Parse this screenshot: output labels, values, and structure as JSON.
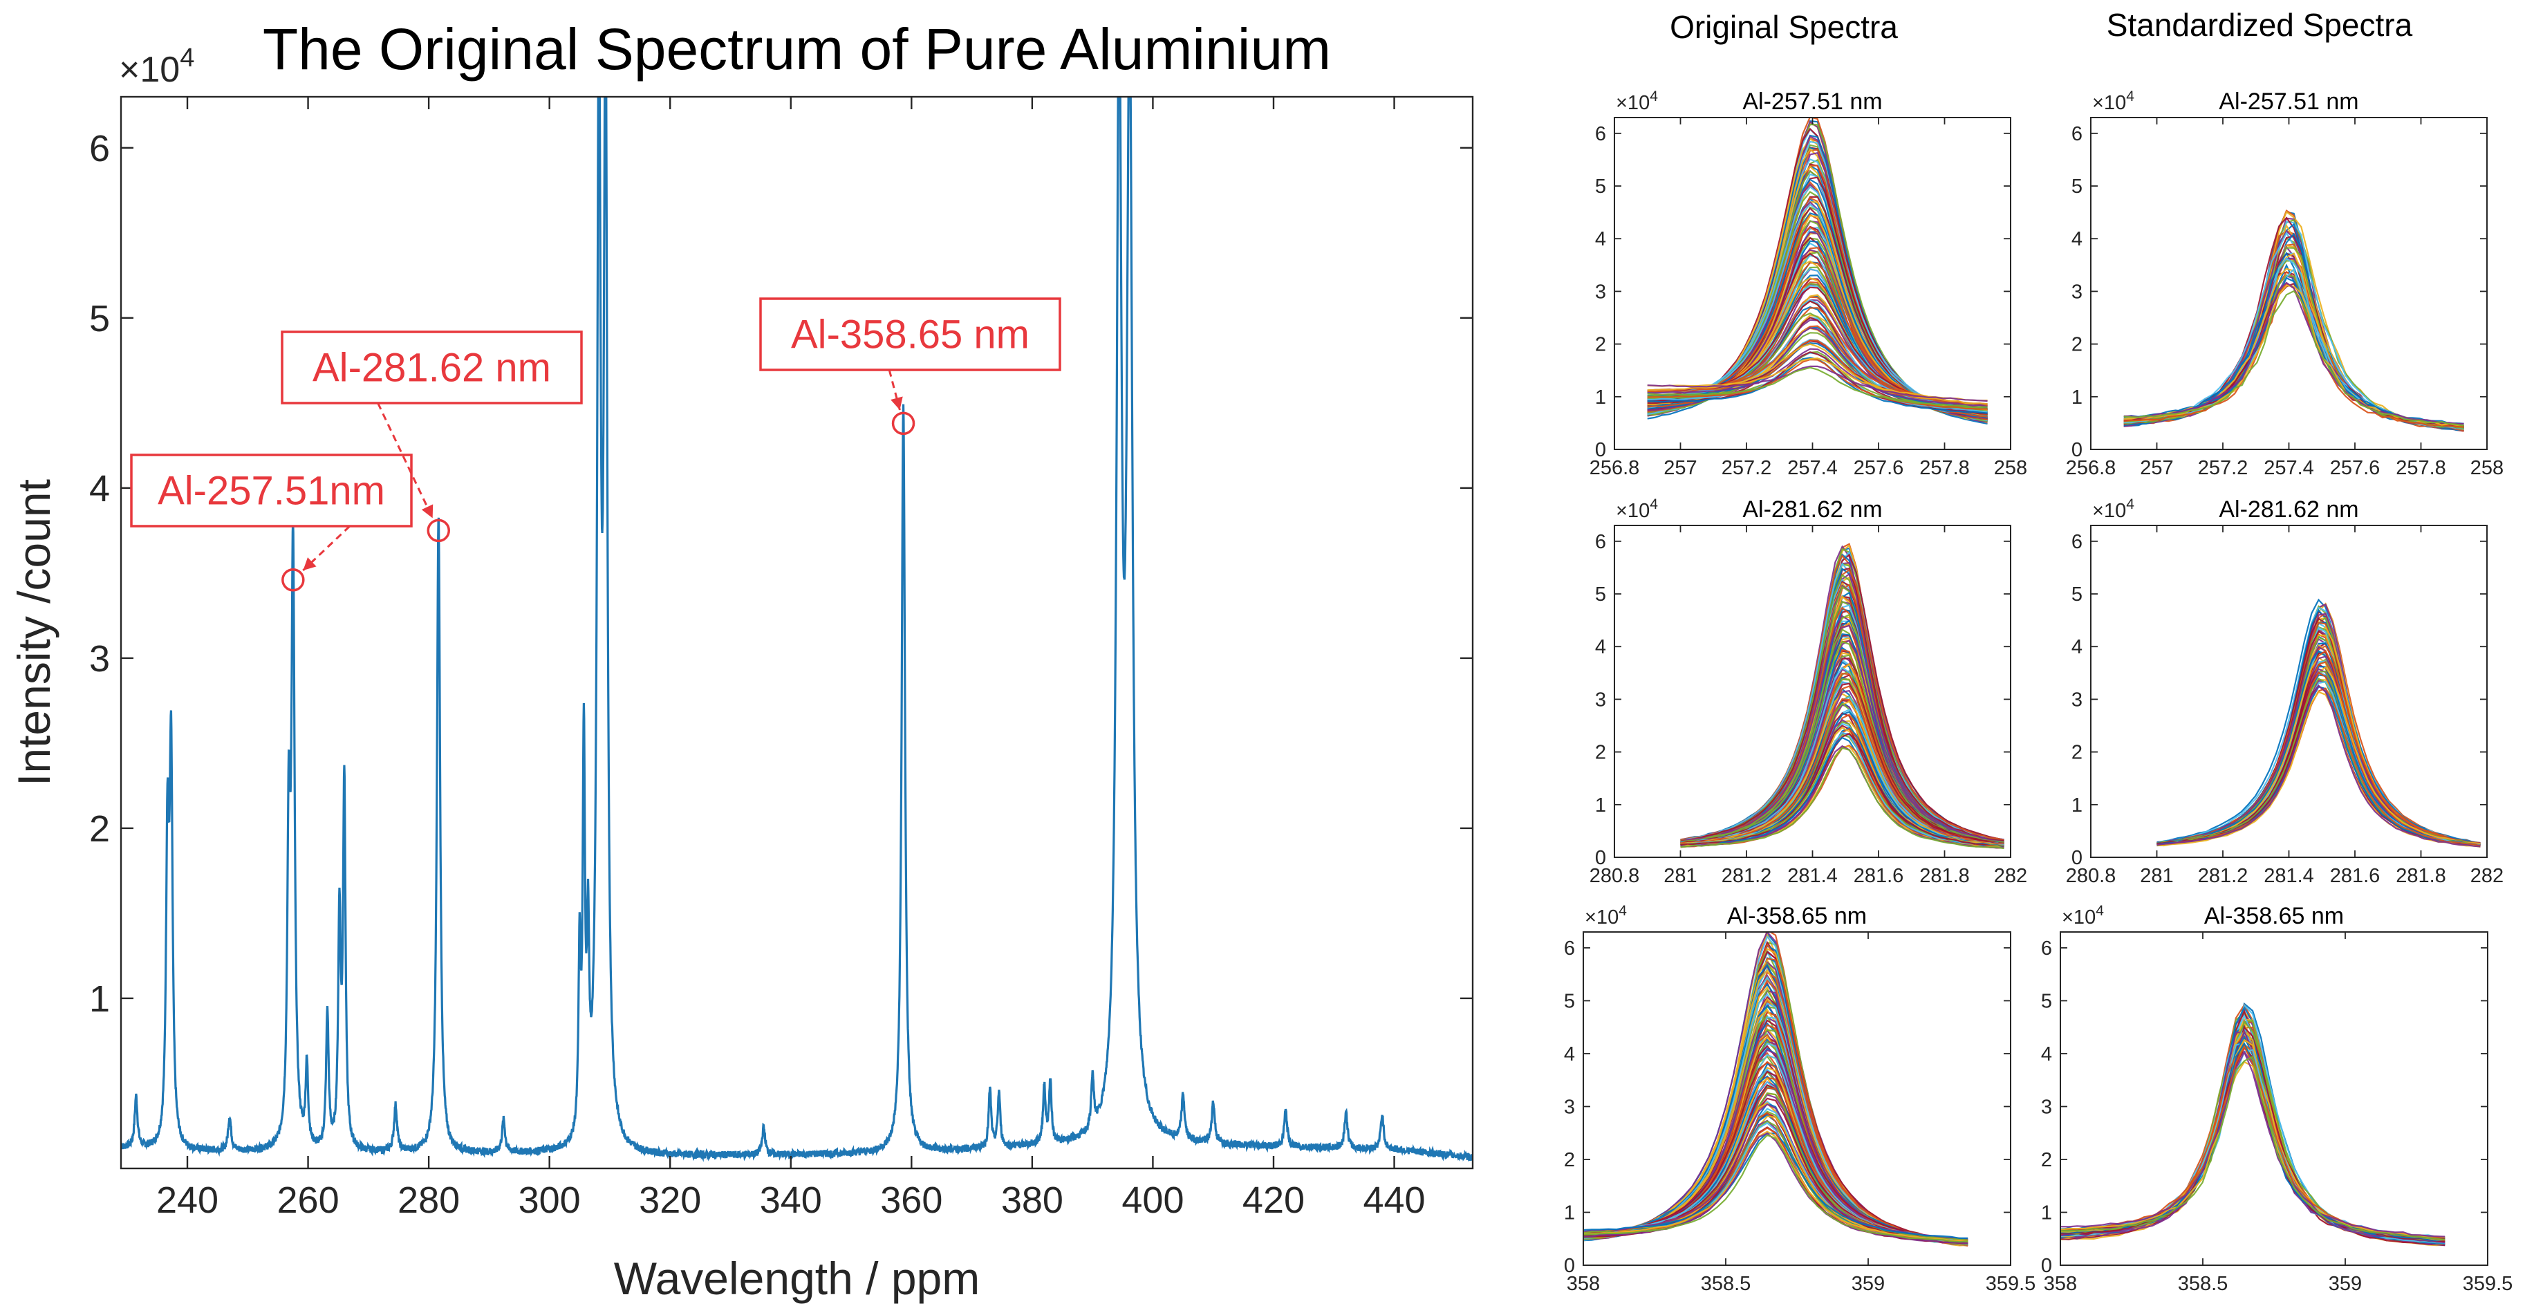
{
  "chart_data": [
    {
      "id": "main",
      "type": "line",
      "title": "The Original Spectrum of Pure Aluminium",
      "xlabel": "Wavelength / ppm",
      "ylabel": "Intensity /count",
      "xlim": [
        229,
        453
      ],
      "ylim": [
        0,
        63000
      ],
      "exponent_label": "×10",
      "exponent_power": "4",
      "xticks": [
        240,
        260,
        280,
        300,
        320,
        340,
        360,
        380,
        400,
        420,
        440
      ],
      "xtick_labels": [
        "240",
        "260",
        "280",
        "300",
        "320",
        "340",
        "360",
        "380",
        "400",
        "420",
        "440"
      ],
      "yticks": [
        10000,
        20000,
        30000,
        40000,
        50000,
        60000
      ],
      "ytick_labels": [
        "1",
        "2",
        "3",
        "4",
        "5",
        "6"
      ],
      "line_color": "#1f77b4",
      "baseline": [
        [
          229,
          1200
        ],
        [
          240,
          1000
        ],
        [
          260,
          950
        ],
        [
          280,
          900
        ],
        [
          300,
          850
        ],
        [
          320,
          720
        ],
        [
          340,
          780
        ],
        [
          360,
          900
        ],
        [
          380,
          1250
        ],
        [
          395,
          1300
        ],
        [
          400,
          1400
        ],
        [
          410,
          1350
        ],
        [
          420,
          1250
        ],
        [
          440,
          1100
        ],
        [
          453,
          650
        ]
      ],
      "peaks": [
        {
          "x": 231.5,
          "y": 3000,
          "w": 0.28
        },
        {
          "x": 236.7,
          "y": 17200,
          "w": 0.28
        },
        {
          "x": 237.3,
          "y": 22600,
          "w": 0.3
        },
        {
          "x": 247.0,
          "y": 2000,
          "w": 0.3
        },
        {
          "x": 256.8,
          "y": 17600,
          "w": 0.28
        },
        {
          "x": 257.51,
          "y": 34600,
          "w": 0.32
        },
        {
          "x": 259.8,
          "y": 4700,
          "w": 0.25
        },
        {
          "x": 263.2,
          "y": 8000,
          "w": 0.25
        },
        {
          "x": 265.2,
          "y": 13500,
          "w": 0.25
        },
        {
          "x": 266.0,
          "y": 21500,
          "w": 0.25
        },
        {
          "x": 274.5,
          "y": 2700,
          "w": 0.3
        },
        {
          "x": 281.62,
          "y": 37500,
          "w": 0.32
        },
        {
          "x": 292.4,
          "y": 1900,
          "w": 0.3
        },
        {
          "x": 305.0,
          "y": 10600,
          "w": 0.22
        },
        {
          "x": 305.7,
          "y": 23000,
          "w": 0.22
        },
        {
          "x": 306.4,
          "y": 10500,
          "w": 0.22
        },
        {
          "x": 308.2,
          "y": 63000,
          "w": 0.35
        },
        {
          "x": 309.3,
          "y": 63000,
          "w": 0.35
        },
        {
          "x": 335.5,
          "y": 1600,
          "w": 0.3
        },
        {
          "x": 358.65,
          "y": 43800,
          "w": 0.34
        },
        {
          "x": 373.0,
          "y": 3400,
          "w": 0.25
        },
        {
          "x": 374.5,
          "y": 3200,
          "w": 0.25
        },
        {
          "x": 382.0,
          "y": 3300,
          "w": 0.25
        },
        {
          "x": 383.0,
          "y": 3600,
          "w": 0.25
        },
        {
          "x": 390.0,
          "y": 3100,
          "w": 0.25
        },
        {
          "x": 394.4,
          "y": 63000,
          "w": 0.5
        },
        {
          "x": 396.15,
          "y": 63000,
          "w": 0.55
        },
        {
          "x": 405.0,
          "y": 2600,
          "w": 0.3
        },
        {
          "x": 410.0,
          "y": 2400,
          "w": 0.3
        },
        {
          "x": 422.0,
          "y": 2100,
          "w": 0.3
        },
        {
          "x": 432.0,
          "y": 2100,
          "w": 0.3
        },
        {
          "x": 438.0,
          "y": 2000,
          "w": 0.3
        }
      ],
      "annotations": [
        {
          "label": "Al-257.51nm",
          "x": 257.51,
          "y": 34600
        },
        {
          "label": "Al-281.62 nm",
          "x": 281.62,
          "y": 37500
        },
        {
          "label": "Al-358.65 nm",
          "x": 358.65,
          "y": 43800
        }
      ]
    },
    {
      "id": "orig-257",
      "column": "Original Spectra",
      "type": "line",
      "title": "Al-257.51 nm",
      "xlim": [
        256.8,
        258
      ],
      "ylim": [
        0,
        63000
      ],
      "xticks": [
        256.8,
        257,
        257.2,
        257.4,
        257.6,
        257.8,
        258
      ],
      "xtick_labels": [
        "256.8",
        "257",
        "257.2",
        "257.4",
        "257.6",
        "257.8",
        "258"
      ],
      "yticks": [
        0,
        10000,
        20000,
        30000,
        40000,
        50000,
        60000
      ],
      "ytick_labels": [
        "0",
        "1",
        "2",
        "3",
        "4",
        "5",
        "6"
      ],
      "exponent_label": "×10",
      "exponent_power": "4",
      "x_start": 256.9,
      "x_end": 257.93,
      "center": 257.4,
      "peak_range": [
        17000,
        64000
      ],
      "base_range": [
        3000,
        12000
      ],
      "width": 0.12,
      "jitter": 0,
      "n_series": 110
    },
    {
      "id": "std-257",
      "column": "Standardized Spectra",
      "type": "line",
      "title": "Al-257.51 nm",
      "xlim": [
        256.8,
        258
      ],
      "ylim": [
        0,
        63000
      ],
      "xticks": [
        256.8,
        257,
        257.2,
        257.4,
        257.6,
        257.8,
        258
      ],
      "xtick_labels": [
        "256.8",
        "257",
        "257.2",
        "257.4",
        "257.6",
        "257.8",
        "258"
      ],
      "yticks": [
        0,
        10000,
        20000,
        30000,
        40000,
        50000,
        60000
      ],
      "ytick_labels": [
        "0",
        "1",
        "2",
        "3",
        "4",
        "5",
        "6"
      ],
      "exponent_label": "×10",
      "exponent_power": "4",
      "x_start": 256.9,
      "x_end": 257.93,
      "center": 257.4,
      "peak_range": [
        31000,
        46000
      ],
      "base_range": [
        3000,
        5500
      ],
      "width": 0.1,
      "jitter": 1,
      "n_series": 40
    },
    {
      "id": "orig-281",
      "column": "Original Spectra",
      "type": "line",
      "title": "Al-281.62 nm",
      "xlim": [
        280.8,
        282
      ],
      "ylim": [
        0,
        63000
      ],
      "xticks": [
        280.8,
        281,
        281.2,
        281.4,
        281.6,
        281.8,
        282
      ],
      "xtick_labels": [
        "280.8",
        "281",
        "281.2",
        "281.4",
        "281.6",
        "281.8",
        "282"
      ],
      "yticks": [
        0,
        10000,
        20000,
        30000,
        40000,
        50000,
        60000
      ],
      "ytick_labels": [
        "0",
        "1",
        "2",
        "3",
        "4",
        "5",
        "6"
      ],
      "exponent_label": "×10",
      "exponent_power": "4",
      "x_start": 281.0,
      "x_end": 281.98,
      "center": 281.5,
      "peak_range": [
        21000,
        60000
      ],
      "base_range": [
        800,
        1500
      ],
      "width": 0.1,
      "jitter": 0,
      "n_series": 110
    },
    {
      "id": "std-281",
      "column": "Standardized Spectra",
      "type": "line",
      "title": "Al-281.62 nm",
      "xlim": [
        280.8,
        282
      ],
      "ylim": [
        0,
        63000
      ],
      "xticks": [
        280.8,
        281,
        281.2,
        281.4,
        281.6,
        281.8,
        282
      ],
      "xtick_labels": [
        "280.8",
        "281",
        "281.2",
        "281.4",
        "281.6",
        "281.8",
        "282"
      ],
      "yticks": [
        0,
        10000,
        20000,
        30000,
        40000,
        50000,
        60000
      ],
      "ytick_labels": [
        "0",
        "1",
        "2",
        "3",
        "4",
        "5",
        "6"
      ],
      "exponent_label": "×10",
      "exponent_power": "4",
      "x_start": 281.0,
      "x_end": 281.98,
      "center": 281.5,
      "peak_range": [
        32000,
        49000
      ],
      "base_range": [
        800,
        1300
      ],
      "width": 0.1,
      "jitter": 0,
      "n_series": 60
    },
    {
      "id": "orig-358",
      "column": "Original Spectra",
      "type": "line",
      "title": "Al-358.65 nm",
      "xlim": [
        358,
        359.5
      ],
      "ylim": [
        0,
        63000
      ],
      "xticks": [
        358,
        358.5,
        359,
        359.5
      ],
      "xtick_labels": [
        "358",
        "358.5",
        "359",
        "359.5"
      ],
      "yticks": [
        0,
        10000,
        20000,
        30000,
        40000,
        50000,
        60000
      ],
      "ytick_labels": [
        "0",
        "1",
        "2",
        "3",
        "4",
        "5",
        "6"
      ],
      "exponent_label": "×10",
      "exponent_power": "4",
      "x_start": 358.0,
      "x_end": 359.35,
      "center": 358.65,
      "peak_range": [
        25000,
        64000
      ],
      "base_range": [
        2500,
        6000
      ],
      "width": 0.13,
      "jitter": 0,
      "n_series": 110
    },
    {
      "id": "std-358",
      "column": "Standardized Spectra",
      "type": "line",
      "title": "Al-358.65 nm",
      "xlim": [
        358,
        359.5
      ],
      "ylim": [
        0,
        63000
      ],
      "xticks": [
        358,
        358.5,
        359,
        359.5
      ],
      "xtick_labels": [
        "358",
        "358.5",
        "359",
        "359.5"
      ],
      "yticks": [
        0,
        10000,
        20000,
        30000,
        40000,
        50000,
        60000
      ],
      "ytick_labels": [
        "0",
        "1",
        "2",
        "3",
        "4",
        "5",
        "6"
      ],
      "exponent_label": "×10",
      "exponent_power": "4",
      "x_start": 358.0,
      "x_end": 359.35,
      "center": 358.65,
      "peak_range": [
        40000,
        50000
      ],
      "base_range": [
        3500,
        6500
      ],
      "width": 0.11,
      "jitter": 1,
      "n_series": 40
    }
  ],
  "column_titles": {
    "original": "Original Spectra",
    "standardized": "Standardized Spectra"
  },
  "series_palette": [
    "#0072bd",
    "#d95319",
    "#edb120",
    "#7e2f8e",
    "#77ac30",
    "#4dbeee",
    "#a2142f"
  ]
}
